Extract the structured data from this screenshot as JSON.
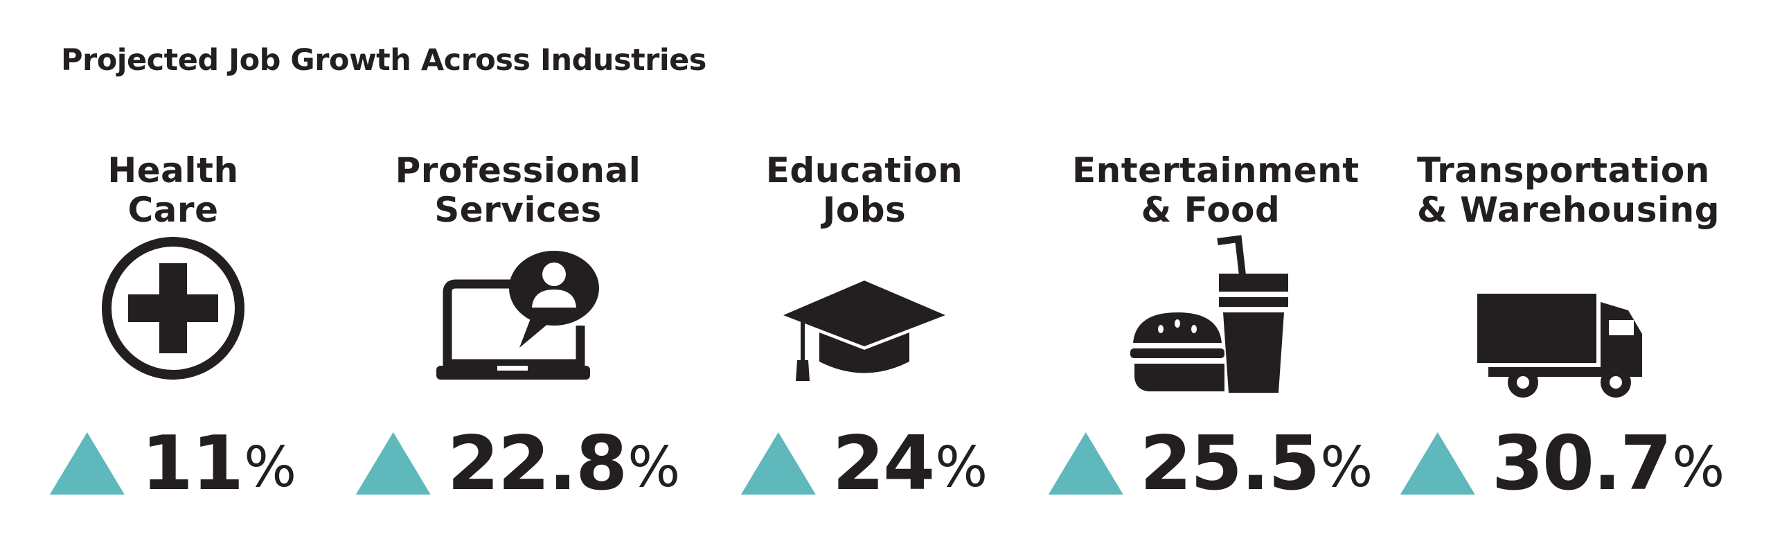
{
  "title": "Projected Job Growth Across Industries",
  "accent_color": "#5fb8bb",
  "industries": [
    {
      "line1": "Health",
      "line2": "Care",
      "icon": "medical-cross-icon",
      "value": "11",
      "unit": "%"
    },
    {
      "line1": "Professional",
      "line2": "Services",
      "icon": "laptop-user-icon",
      "value": "22.8",
      "unit": "%"
    },
    {
      "line1": "Education",
      "line2": "Jobs",
      "icon": "graduation-cap-icon",
      "value": "24",
      "unit": "%"
    },
    {
      "line1": "Entertainment",
      "line2": "& Food",
      "icon": "burger-drink-icon",
      "value": "25.5",
      "unit": "%"
    },
    {
      "line1": "Transportation",
      "line2": "& Warehousing",
      "icon": "truck-icon",
      "value": "30.7",
      "unit": "%"
    }
  ]
}
